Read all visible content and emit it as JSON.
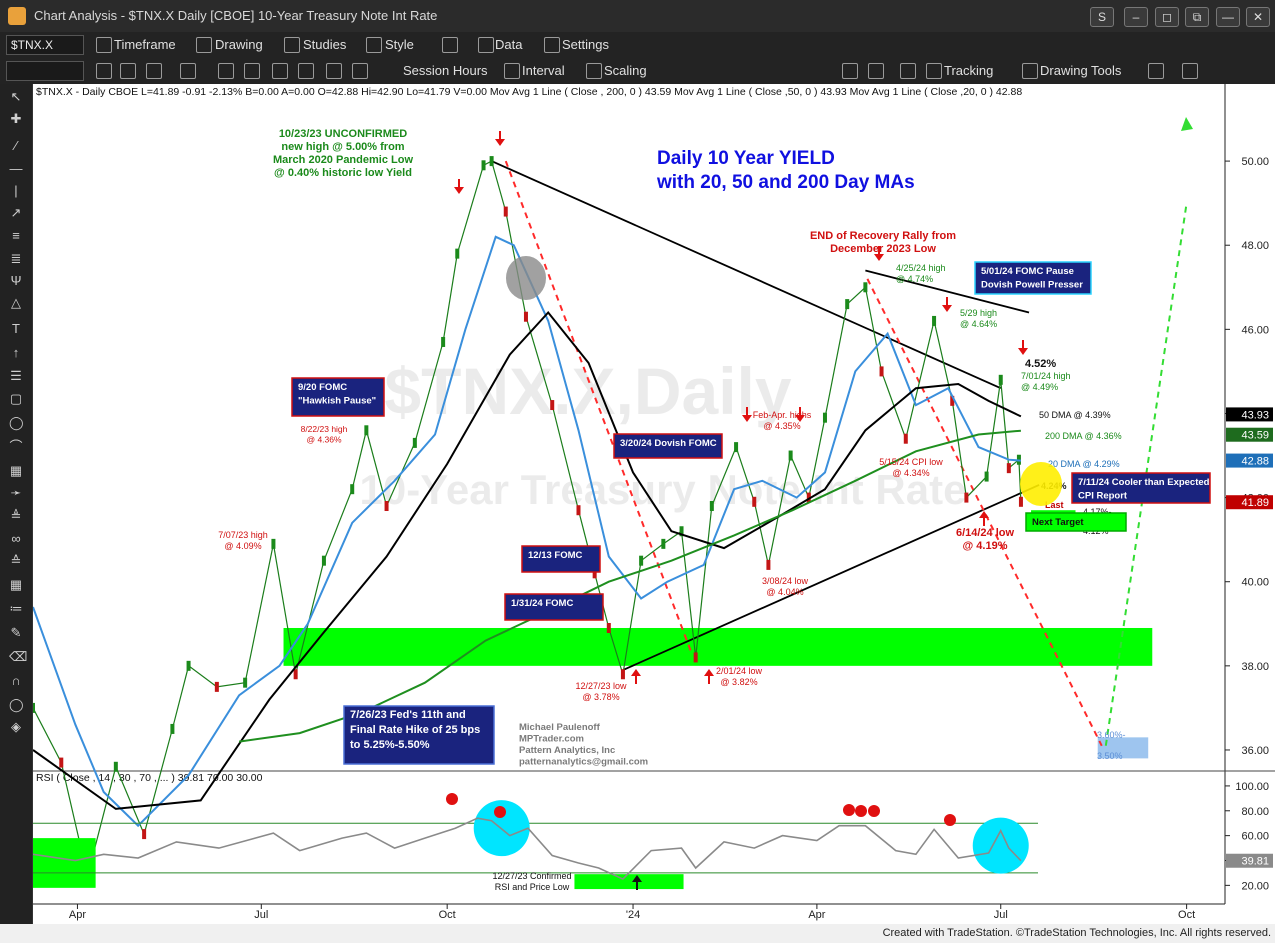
{
  "window": {
    "title": "Chart Analysis - $TNX.X Daily [CBOE] 10-Year Treasury Note Int Rate"
  },
  "toolbar1": {
    "symbol": "$TNX.X",
    "timeframe": "Timeframe",
    "drawing": "Drawing",
    "studies": "Studies",
    "style": "Style",
    "data": "Data",
    "settings": "Settings"
  },
  "toolbar2": {
    "session": "Session Hours",
    "interval": "Interval",
    "scaling": "Scaling",
    "tracking": "Tracking",
    "drawing_tools": "Drawing Tools"
  },
  "info_line": {
    "text": "$TNX.X - Daily  CBOE  L=41.89  -0.91  -2.13%  B=0.00  A=0.00  O=42.88  Hi=42.90  Lo=41.79  V=0.00  Mov Avg 1 Line (  Close , 200,  0 )   43.59  Mov Avg 1 Line (  Close ,50,  0 )   43.93  Mov Avg 1 Line (  Close ,20,  0 )   42.88"
  },
  "rsi_label": "RSI ( Close , 14 , 30 , 70 , ... )   39.81   70.00   30.00",
  "watermark": {
    "line1": "$TNX.X,Daily",
    "line2": "10-Year Treasury Note Int Rate"
  },
  "footer": "Created with TradeStation. ©TradeStation Technologies, Inc. All rights reserved.",
  "chart_data": {
    "type": "line",
    "title": "Daily 10 Year YIELD with 20, 50 and 200 Day MAs",
    "title_lines": [
      "Daily 10 Year YIELD",
      "with 20, 50 and 200 Day MAs"
    ],
    "xlabel": "",
    "ylabel": "",
    "ylim": [
      35.5,
      51.5
    ],
    "grid": false,
    "x_tick_labels": [
      "Apr",
      "Jul",
      "Oct",
      "'24",
      "Apr",
      "Jul",
      "Oct"
    ],
    "x_tick_dates": [
      "2023-04-01",
      "2023-07-01",
      "2023-10-01",
      "2024-01-01",
      "2024-04-01",
      "2024-07-01",
      "2024-10-01"
    ],
    "x_range": [
      "2023-03-10",
      "2024-10-20"
    ],
    "y_ticks": [
      36,
      38,
      40,
      42,
      44,
      46,
      48,
      50
    ],
    "y_tick_labels": [
      "36.00",
      "38.00",
      "40.00",
      "42.00",
      "44.00",
      "46.00",
      "48.00",
      "50.00"
    ],
    "price_tags": [
      {
        "value": 43.93,
        "label": "43.93",
        "color": "#000000"
      },
      {
        "value": 43.59,
        "label": "43.59",
        "color": "#1e6b1e"
      },
      {
        "value": 42.88,
        "label": "42.88",
        "color": "#1e6fb8"
      },
      {
        "value": 41.89,
        "label": "41.89",
        "color": "#c00000"
      }
    ],
    "series": [
      {
        "name": "$TNX.X Daily",
        "kind": "price",
        "color": "#1b7d1b",
        "points": [
          [
            "2023-03-10",
            37.0
          ],
          [
            "2023-03-24",
            35.7
          ],
          [
            "2023-04-06",
            33.0
          ],
          [
            "2023-04-20",
            35.6
          ],
          [
            "2023-05-04",
            34.0
          ],
          [
            "2023-05-18",
            36.5
          ],
          [
            "2023-05-26",
            38.0
          ],
          [
            "2023-06-09",
            37.5
          ],
          [
            "2023-06-23",
            37.6
          ],
          [
            "2023-07-07",
            40.9
          ],
          [
            "2023-07-18",
            37.8
          ],
          [
            "2023-08-01",
            40.5
          ],
          [
            "2023-08-15",
            42.2
          ],
          [
            "2023-08-22",
            43.6
          ],
          [
            "2023-09-01",
            41.8
          ],
          [
            "2023-09-15",
            43.3
          ],
          [
            "2023-09-29",
            45.7
          ],
          [
            "2023-10-06",
            47.8
          ],
          [
            "2023-10-19",
            49.9
          ],
          [
            "2023-10-23",
            50.0
          ],
          [
            "2023-10-30",
            48.8
          ],
          [
            "2023-11-09",
            46.3
          ],
          [
            "2023-11-22",
            44.2
          ],
          [
            "2023-12-05",
            41.7
          ],
          [
            "2023-12-13",
            40.2
          ],
          [
            "2023-12-20",
            38.9
          ],
          [
            "2023-12-27",
            37.8
          ],
          [
            "2024-01-05",
            40.5
          ],
          [
            "2024-01-16",
            40.9
          ],
          [
            "2024-01-25",
            41.2
          ],
          [
            "2024-02-01",
            38.2
          ],
          [
            "2024-02-09",
            41.8
          ],
          [
            "2024-02-21",
            43.2
          ],
          [
            "2024-03-01",
            41.9
          ],
          [
            "2024-03-08",
            40.4
          ],
          [
            "2024-03-19",
            43.0
          ],
          [
            "2024-03-28",
            42.0
          ],
          [
            "2024-04-05",
            43.9
          ],
          [
            "2024-04-16",
            46.6
          ],
          [
            "2024-04-25",
            47.0
          ],
          [
            "2024-05-03",
            45.0
          ],
          [
            "2024-05-15",
            43.4
          ],
          [
            "2024-05-29",
            46.2
          ],
          [
            "2024-06-07",
            44.3
          ],
          [
            "2024-06-14",
            42.0
          ],
          [
            "2024-06-24",
            42.5
          ],
          [
            "2024-07-01",
            44.8
          ],
          [
            "2024-07-05",
            42.7
          ],
          [
            "2024-07-10",
            42.9
          ],
          [
            "2024-07-11",
            41.9
          ]
        ]
      },
      {
        "name": "Mov Avg 20",
        "kind": "ma20",
        "color": "#3a8fdc",
        "points": [
          [
            "2023-03-10",
            39.4
          ],
          [
            "2023-03-31",
            36.6
          ],
          [
            "2023-04-14",
            35.0
          ],
          [
            "2023-05-01",
            34.2
          ],
          [
            "2023-05-26",
            35.4
          ],
          [
            "2023-06-20",
            37.3
          ],
          [
            "2023-07-10",
            38.0
          ],
          [
            "2023-07-24",
            39.0
          ],
          [
            "2023-08-15",
            41.4
          ],
          [
            "2023-09-05",
            42.4
          ],
          [
            "2023-09-25",
            43.5
          ],
          [
            "2023-10-10",
            46.0
          ],
          [
            "2023-10-25",
            48.2
          ],
          [
            "2023-11-03",
            48.0
          ],
          [
            "2023-11-20",
            46.2
          ],
          [
            "2023-12-05",
            43.6
          ],
          [
            "2023-12-20",
            40.6
          ],
          [
            "2024-01-05",
            39.6
          ],
          [
            "2024-01-18",
            40.0
          ],
          [
            "2024-02-05",
            40.4
          ],
          [
            "2024-02-20",
            42.2
          ],
          [
            "2024-03-05",
            42.4
          ],
          [
            "2024-03-22",
            42.0
          ],
          [
            "2024-04-05",
            42.6
          ],
          [
            "2024-04-20",
            45.0
          ],
          [
            "2024-05-06",
            45.9
          ],
          [
            "2024-05-20",
            44.2
          ],
          [
            "2024-06-05",
            44.6
          ],
          [
            "2024-06-20",
            43.2
          ],
          [
            "2024-07-05",
            42.9
          ],
          [
            "2024-07-11",
            42.88
          ]
        ]
      },
      {
        "name": "Mov Avg 50",
        "kind": "ma50",
        "color": "#000000",
        "points": [
          [
            "2023-03-10",
            36.0
          ],
          [
            "2023-04-20",
            34.6
          ],
          [
            "2023-06-01",
            34.8
          ],
          [
            "2023-07-05",
            37.2
          ],
          [
            "2023-08-01",
            38.8
          ],
          [
            "2023-09-01",
            40.6
          ],
          [
            "2023-10-01",
            42.8
          ],
          [
            "2023-11-01",
            45.4
          ],
          [
            "2023-11-20",
            46.4
          ],
          [
            "2023-12-10",
            45.2
          ],
          [
            "2024-01-01",
            42.6
          ],
          [
            "2024-01-20",
            41.2
          ],
          [
            "2024-02-15",
            40.8
          ],
          [
            "2024-03-15",
            41.6
          ],
          [
            "2024-04-05",
            42.2
          ],
          [
            "2024-04-25",
            43.6
          ],
          [
            "2024-05-20",
            44.6
          ],
          [
            "2024-06-10",
            44.7
          ],
          [
            "2024-06-25",
            44.3
          ],
          [
            "2024-07-11",
            43.93
          ]
        ]
      },
      {
        "name": "Mov Avg 200",
        "kind": "ma200",
        "color": "#1f8f1f",
        "points": [
          [
            "2023-06-20",
            36.2
          ],
          [
            "2023-07-20",
            36.4
          ],
          [
            "2023-08-20",
            36.9
          ],
          [
            "2023-09-20",
            37.6
          ],
          [
            "2023-10-20",
            38.6
          ],
          [
            "2023-11-20",
            39.3
          ],
          [
            "2023-12-20",
            40.0
          ],
          [
            "2024-01-20",
            40.5
          ],
          [
            "2024-02-20",
            41.1
          ],
          [
            "2024-03-20",
            41.7
          ],
          [
            "2024-04-20",
            42.4
          ],
          [
            "2024-05-20",
            43.1
          ],
          [
            "2024-06-20",
            43.5
          ],
          [
            "2024-07-11",
            43.59
          ]
        ]
      }
    ],
    "trendlines": [
      {
        "from": [
          "2023-10-23",
          50.0
        ],
        "to": [
          "2024-07-01",
          44.6
        ],
        "color": "#000000",
        "dash": false
      },
      {
        "from": [
          "2024-04-25",
          47.4
        ],
        "to": [
          "2024-07-15",
          46.4
        ],
        "color": "#000000",
        "dash": false
      },
      {
        "from": [
          "2023-12-27",
          37.9
        ],
        "to": [
          "2024-07-20",
          42.3
        ],
        "color": "#000000",
        "dash": false
      },
      {
        "from": [
          "2023-10-30",
          50.0
        ],
        "to": [
          "2024-01-30",
          38.3
        ],
        "color": "#ff2a2a",
        "dash": true
      },
      {
        "from": [
          "2024-04-26",
          47.2
        ],
        "to": [
          "2024-08-20",
          36.1
        ],
        "color": "#ff2a2a",
        "dash": true
      },
      {
        "from": [
          "2024-08-22",
          36.1
        ],
        "to": [
          "2024-10-01",
          49.0
        ],
        "color": "#33dd33",
        "dash": true
      }
    ],
    "zones": [
      {
        "from": "2023-07-12",
        "to": "2024-09-14",
        "ymin": 38.0,
        "ymax": 38.9,
        "color": "#00ff00"
      },
      {
        "from": "2024-07-16",
        "to": "2024-08-07",
        "ymin": 41.3,
        "ymax": 41.7,
        "color": "#00ff00"
      },
      {
        "from": "2024-08-18",
        "to": "2024-09-12",
        "ymin": 35.8,
        "ymax": 36.3,
        "color": "#9ec5ef"
      }
    ],
    "annotations": [
      {
        "text": [
          "10/23/23 UNCONFIRMED",
          "new high @ 5.00% from",
          "March 2020 Pandemic Low",
          "@ 0.40% historic low Yield"
        ],
        "color": "#1b8a1b"
      },
      {
        "text": [
          "END of Recovery Rally from",
          "December 2023 Low"
        ],
        "color": "#d01010"
      },
      {
        "text": [
          "4/25/24 high",
          "@ 4.74%"
        ],
        "color": "#1b8a1b"
      },
      {
        "text": [
          "5/29 high",
          "@ 4.64%"
        ],
        "color": "#1b8a1b"
      },
      {
        "text": [
          "4.52%"
        ],
        "color": "#111111"
      },
      {
        "text": [
          "7/01/24 high",
          "@ 4.49%"
        ],
        "color": "#1b8a1b"
      },
      {
        "text": [
          "50 DMA @ 4.39%"
        ],
        "color": "#111111"
      },
      {
        "text": [
          "200 DMA @ 4.36%"
        ],
        "color": "#1b8a1b"
      },
      {
        "text": [
          "20 DMA @ 4.29%"
        ],
        "color": "#1e6fb8"
      },
      {
        "text": [
          "4.24%"
        ],
        "color": "#111111"
      },
      {
        "text": [
          "Last"
        ],
        "color": "#c00000"
      },
      {
        "text": [
          "4.17%-"
        ],
        "color": "#111111"
      },
      {
        "text": [
          "4.12%"
        ],
        "color": "#111111"
      },
      {
        "text": [
          "6/14/24 low",
          "@ 4.19%"
        ],
        "color": "#d01010"
      },
      {
        "text": [
          "5/15/24 CPI low",
          "@ 4.34%"
        ],
        "color": "#d01010"
      },
      {
        "text": [
          "Feb-Apr. highs",
          "@ 4.35%"
        ],
        "color": "#d01010"
      },
      {
        "text": [
          "8/22/23 high",
          "@ 4.36%"
        ],
        "color": "#d01010"
      },
      {
        "text": [
          "7/07/23 high",
          "@ 4.09%"
        ],
        "color": "#d01010"
      },
      {
        "text": [
          "3/08/24 low",
          "@ 4.04%"
        ],
        "color": "#d01010"
      },
      {
        "text": [
          "12/27/23 low",
          "@ 3.78%"
        ],
        "color": "#d01010"
      },
      {
        "text": [
          "2/01/24 low",
          "@ 3.82%"
        ],
        "color": "#d01010"
      },
      {
        "text": [
          "3.60%-"
        ],
        "color": "#5c8fd6"
      },
      {
        "text": [
          "3.50%"
        ],
        "color": "#5c8fd6"
      },
      {
        "text": [
          "Michael Paulenoff",
          "MPTrader.com",
          "Pattern Analytics, Inc",
          "patternanalytics@gmail.com"
        ],
        "color": "#7a7a7a"
      },
      {
        "text": [
          "12/27/23 Confirmed",
          "RSI and Price Low"
        ],
        "color": "#111111"
      }
    ],
    "boxes": [
      {
        "text": [
          "9/20 FOMC",
          "\"Hawkish Pause\""
        ],
        "bg": "#1a237e",
        "fg": "#ffffff",
        "border": "#d01010"
      },
      {
        "text": [
          "3/20/24 Dovish FOMC"
        ],
        "bg": "#1a237e",
        "fg": "#ffffff",
        "border": "#d01010"
      },
      {
        "text": [
          "12/13 FOMC"
        ],
        "bg": "#1a237e",
        "fg": "#ffffff",
        "border": "#d01010"
      },
      {
        "text": [
          "1/31/24 FOMC"
        ],
        "bg": "#1a237e",
        "fg": "#ffffff",
        "border": "#d01010"
      },
      {
        "text": [
          "7/26/23 Fed's 11th and",
          "Final Rate Hike of 25 bps",
          "to 5.25%-5.50%"
        ],
        "bg": "#1a237e",
        "fg": "#ffffff",
        "border": "#4a6fd6"
      },
      {
        "text": [
          "5/01/24 FOMC Pause",
          "Dovish Powell Presser"
        ],
        "bg": "#1a237e",
        "fg": "#ffffff",
        "border": "#2ad4ff"
      },
      {
        "text": [
          "7/11/24 Cooler than Expected",
          "CPI Report"
        ],
        "bg": "#1a237e",
        "fg": "#ffffff",
        "border": "#d01010"
      },
      {
        "text": [
          "Next Target"
        ],
        "bg": "#00ff00",
        "fg": "#111111",
        "border": "#00aa00"
      }
    ],
    "rsi": {
      "name": "RSI",
      "ylim": [
        5,
        112
      ],
      "y_ticks": [
        20,
        40,
        60,
        80,
        100
      ],
      "y_tick_labels": [
        "20.00",
        "40.00",
        "60.00",
        "80.00",
        "100.00"
      ],
      "overbought": 70,
      "oversold": 30,
      "last": 39.81,
      "last_label": "39.81",
      "points": [
        [
          "2023-03-10",
          45
        ],
        [
          "2023-03-31",
          40
        ],
        [
          "2023-04-14",
          45
        ],
        [
          "2023-05-01",
          42
        ],
        [
          "2023-05-20",
          55
        ],
        [
          "2023-06-10",
          50
        ],
        [
          "2023-07-07",
          62
        ],
        [
          "2023-07-20",
          48
        ],
        [
          "2023-08-10",
          58
        ],
        [
          "2023-08-22",
          62
        ],
        [
          "2023-09-05",
          50
        ],
        [
          "2023-09-20",
          58
        ],
        [
          "2023-10-05",
          66
        ],
        [
          "2023-10-16",
          74
        ],
        [
          "2023-10-23",
          72
        ],
        [
          "2023-11-01",
          60
        ],
        [
          "2023-11-10",
          66
        ],
        [
          "2023-11-22",
          44
        ],
        [
          "2023-12-05",
          38
        ],
        [
          "2023-12-15",
          34
        ],
        [
          "2023-12-27",
          25
        ],
        [
          "2024-01-10",
          48
        ],
        [
          "2024-01-25",
          50
        ],
        [
          "2024-02-01",
          34
        ],
        [
          "2024-02-15",
          55
        ],
        [
          "2024-03-01",
          50
        ],
        [
          "2024-03-15",
          60
        ],
        [
          "2024-04-01",
          56
        ],
        [
          "2024-04-12",
          68
        ],
        [
          "2024-04-25",
          68
        ],
        [
          "2024-05-10",
          48
        ],
        [
          "2024-05-20",
          45
        ],
        [
          "2024-05-29",
          65
        ],
        [
          "2024-06-10",
          42
        ],
        [
          "2024-06-25",
          46
        ],
        [
          "2024-07-01",
          64
        ],
        [
          "2024-07-05",
          50
        ],
        [
          "2024-07-11",
          39.81
        ]
      ],
      "zones": [
        {
          "from": "2023-03-10",
          "to": "2023-04-10",
          "ymin": 18,
          "ymax": 58,
          "color": "#00ff00"
        },
        {
          "from": "2023-12-03",
          "to": "2024-01-26",
          "ymin": 17,
          "ymax": 29,
          "color": "#00ff00"
        }
      ],
      "ellipses": [
        {
          "center": [
            "2023-10-28",
            66
          ],
          "color": "#00e5ff"
        },
        {
          "center": [
            "2024-07-01",
            52
          ],
          "color": "#00e5ff"
        }
      ]
    }
  }
}
